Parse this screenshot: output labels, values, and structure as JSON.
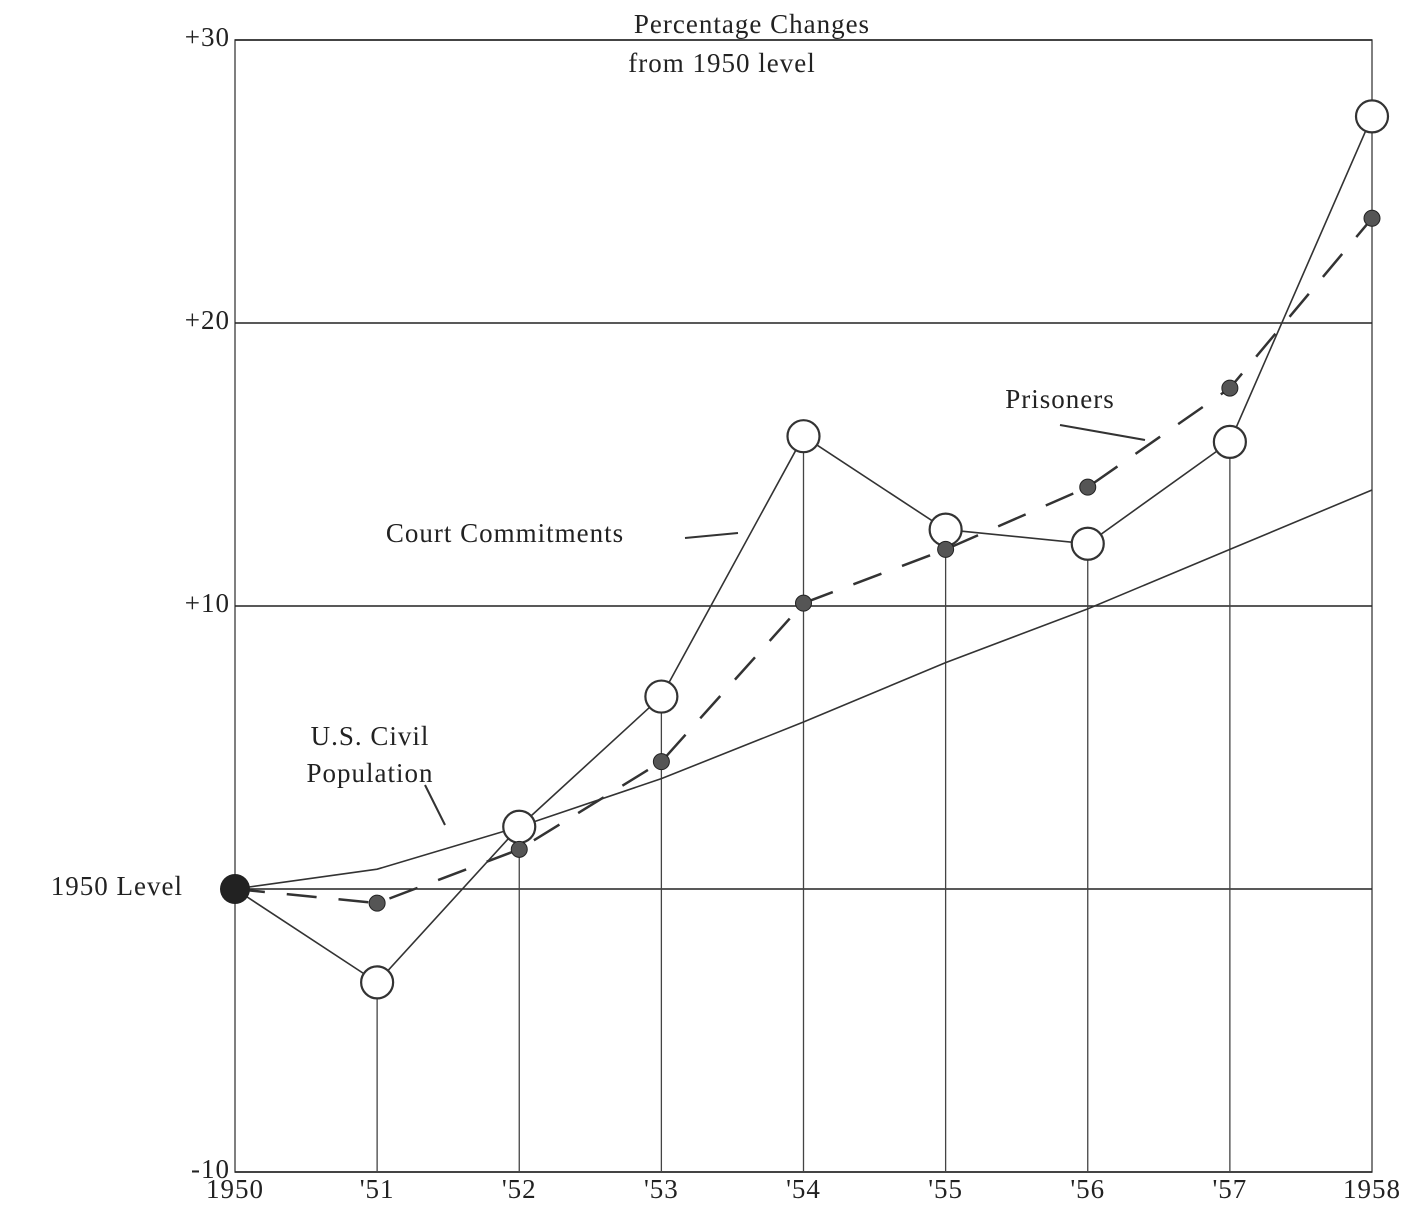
{
  "chart_data": {
    "type": "line",
    "title": "Percentage Changes",
    "subtitle": "from 1950 level",
    "categories": [
      "1950",
      "'51",
      "'52",
      "'53",
      "'54",
      "'55",
      "'56",
      "'57",
      "1958"
    ],
    "series": [
      {
        "name": "Court Commitments",
        "color": "#333333",
        "values": [
          0,
          -3.3,
          2.2,
          6.8,
          16.0,
          12.7,
          12.2,
          15.8,
          27.3
        ]
      },
      {
        "name": "Prisoners",
        "color": "#333333",
        "values": [
          0,
          -0.5,
          1.4,
          4.5,
          10.1,
          12.0,
          14.2,
          17.7,
          23.7
        ]
      },
      {
        "name": "U.S. Civil Population",
        "color": "#333333",
        "values": [
          0,
          0.7,
          2.2,
          3.9,
          5.9,
          8.0,
          9.9,
          12.0,
          14.1
        ]
      }
    ],
    "ylim": [
      -10,
      30
    ],
    "yticks": [
      -10,
      {
        "value": 0,
        "label": "1950 Level"
      },
      {
        "value": 10,
        "label": "+10"
      },
      {
        "value": 20,
        "label": "+20"
      },
      {
        "value": 30,
        "label": "+30"
      }
    ],
    "grid": true
  }
}
